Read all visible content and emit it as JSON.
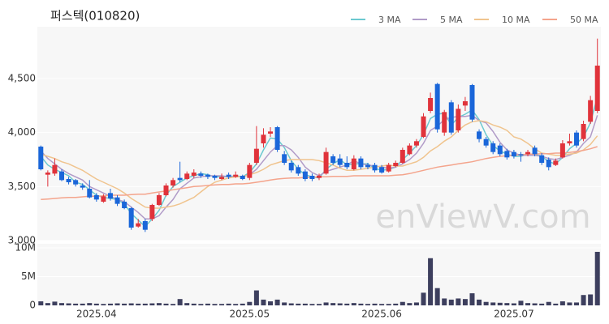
{
  "chart_data": {
    "type": "candlestick",
    "title": "퍼스텍(010820)",
    "watermark": "enViewV.com",
    "categories": [
      null,
      null,
      null,
      null,
      null,
      null,
      null,
      null,
      "2025.04",
      null,
      null,
      null,
      null,
      null,
      null,
      null,
      null,
      null,
      null,
      null,
      null,
      null,
      null,
      null,
      null,
      null,
      null,
      null,
      null,
      null,
      "2025.05",
      null,
      null,
      null,
      null,
      null,
      null,
      null,
      null,
      null,
      null,
      null,
      null,
      null,
      null,
      null,
      null,
      null,
      null,
      "2025.06",
      null,
      null,
      null,
      null,
      null,
      null,
      null,
      null,
      null,
      null,
      null,
      null,
      null,
      null,
      null,
      null,
      null,
      null,
      "2025.07",
      null,
      null,
      null,
      null,
      null,
      null,
      null,
      null,
      null,
      null,
      null,
      null
    ],
    "up_color": "#e0333b",
    "down_color": "#1a66d9",
    "volume_color": "#3d3f5e",
    "candles": [
      {
        "open": 3870,
        "high": 3880,
        "low": 3650,
        "close": 3660
      },
      {
        "open": 3610,
        "high": 3650,
        "low": 3500,
        "close": 3630
      },
      {
        "open": 3620,
        "high": 3760,
        "low": 3600,
        "close": 3700
      },
      {
        "open": 3640,
        "high": 3660,
        "low": 3550,
        "close": 3560
      },
      {
        "open": 3570,
        "high": 3590,
        "low": 3520,
        "close": 3540
      },
      {
        "open": 3560,
        "high": 3570,
        "low": 3500,
        "close": 3520
      },
      {
        "open": 3510,
        "high": 3530,
        "low": 3470,
        "close": 3490
      },
      {
        "open": 3480,
        "high": 3560,
        "low": 3390,
        "close": 3400
      },
      {
        "open": 3420,
        "high": 3440,
        "low": 3360,
        "close": 3380
      },
      {
        "open": 3360,
        "high": 3430,
        "low": 3350,
        "close": 3410
      },
      {
        "open": 3440,
        "high": 3480,
        "low": 3370,
        "close": 3390
      },
      {
        "open": 3400,
        "high": 3420,
        "low": 3320,
        "close": 3340
      },
      {
        "open": 3360,
        "high": 3380,
        "low": 3290,
        "close": 3300
      },
      {
        "open": 3300,
        "high": 3310,
        "low": 3100,
        "close": 3120
      },
      {
        "open": 3130,
        "high": 3200,
        "low": 3120,
        "close": 3160
      },
      {
        "open": 3180,
        "high": 3200,
        "low": 3080,
        "close": 3100
      },
      {
        "open": 3200,
        "high": 3340,
        "low": 3180,
        "close": 3330
      },
      {
        "open": 3330,
        "high": 3440,
        "low": 3320,
        "close": 3420
      },
      {
        "open": 3420,
        "high": 3530,
        "low": 3410,
        "close": 3510
      },
      {
        "open": 3510,
        "high": 3580,
        "low": 3490,
        "close": 3560
      },
      {
        "open": 3580,
        "high": 3730,
        "low": 3540,
        "close": 3560
      },
      {
        "open": 3570,
        "high": 3640,
        "low": 3560,
        "close": 3620
      },
      {
        "open": 3600,
        "high": 3660,
        "low": 3580,
        "close": 3630
      },
      {
        "open": 3620,
        "high": 3640,
        "low": 3580,
        "close": 3600
      },
      {
        "open": 3610,
        "high": 3620,
        "low": 3570,
        "close": 3590
      },
      {
        "open": 3600,
        "high": 3610,
        "low": 3560,
        "close": 3580
      },
      {
        "open": 3570,
        "high": 3620,
        "low": 3560,
        "close": 3590
      },
      {
        "open": 3610,
        "high": 3630,
        "low": 3570,
        "close": 3590
      },
      {
        "open": 3590,
        "high": 3640,
        "low": 3580,
        "close": 3610
      },
      {
        "open": 3600,
        "high": 3610,
        "low": 3560,
        "close": 3570
      },
      {
        "open": 3580,
        "high": 3720,
        "low": 3560,
        "close": 3700
      },
      {
        "open": 3720,
        "high": 4060,
        "low": 3700,
        "close": 3850
      },
      {
        "open": 3900,
        "high": 4040,
        "low": 3860,
        "close": 3980
      },
      {
        "open": 3990,
        "high": 4050,
        "low": 3960,
        "close": 4010
      },
      {
        "open": 4050,
        "high": 4060,
        "low": 3820,
        "close": 3840
      },
      {
        "open": 3800,
        "high": 3830,
        "low": 3700,
        "close": 3720
      },
      {
        "open": 3720,
        "high": 3740,
        "low": 3630,
        "close": 3650
      },
      {
        "open": 3680,
        "high": 3700,
        "low": 3600,
        "close": 3620
      },
      {
        "open": 3640,
        "high": 3660,
        "low": 3550,
        "close": 3570
      },
      {
        "open": 3600,
        "high": 3620,
        "low": 3550,
        "close": 3570
      },
      {
        "open": 3580,
        "high": 3620,
        "low": 3560,
        "close": 3600
      },
      {
        "open": 3620,
        "high": 3860,
        "low": 3610,
        "close": 3820
      },
      {
        "open": 3780,
        "high": 3800,
        "low": 3700,
        "close": 3720
      },
      {
        "open": 3760,
        "high": 3800,
        "low": 3680,
        "close": 3700
      },
      {
        "open": 3720,
        "high": 3780,
        "low": 3660,
        "close": 3680
      },
      {
        "open": 3660,
        "high": 3790,
        "low": 3650,
        "close": 3760
      },
      {
        "open": 3760,
        "high": 3780,
        "low": 3660,
        "close": 3680
      },
      {
        "open": 3700,
        "high": 3720,
        "low": 3660,
        "close": 3680
      },
      {
        "open": 3700,
        "high": 3720,
        "low": 3630,
        "close": 3650
      },
      {
        "open": 3680,
        "high": 3700,
        "low": 3620,
        "close": 3630
      },
      {
        "open": 3640,
        "high": 3720,
        "low": 3630,
        "close": 3700
      },
      {
        "open": 3690,
        "high": 3740,
        "low": 3680,
        "close": 3720
      },
      {
        "open": 3720,
        "high": 3860,
        "low": 3710,
        "close": 3840
      },
      {
        "open": 3800,
        "high": 3900,
        "low": 3790,
        "close": 3880
      },
      {
        "open": 3880,
        "high": 3940,
        "low": 3860,
        "close": 3920
      },
      {
        "open": 3960,
        "high": 4180,
        "low": 3950,
        "close": 4150
      },
      {
        "open": 4200,
        "high": 4370,
        "low": 4180,
        "close": 4320
      },
      {
        "open": 4450,
        "high": 4460,
        "low": 4000,
        "close": 4030
      },
      {
        "open": 4000,
        "high": 4210,
        "low": 3970,
        "close": 4190
      },
      {
        "open": 4280,
        "high": 4300,
        "low": 3980,
        "close": 4000
      },
      {
        "open": 4020,
        "high": 4260,
        "low": 4000,
        "close": 4220
      },
      {
        "open": 4250,
        "high": 4330,
        "low": 4200,
        "close": 4290
      },
      {
        "open": 4440,
        "high": 4450,
        "low": 4100,
        "close": 4120
      },
      {
        "open": 4010,
        "high": 4030,
        "low": 3910,
        "close": 3940
      },
      {
        "open": 3940,
        "high": 3960,
        "low": 3860,
        "close": 3880
      },
      {
        "open": 3900,
        "high": 3920,
        "low": 3800,
        "close": 3820
      },
      {
        "open": 3880,
        "high": 3900,
        "low": 3780,
        "close": 3800
      },
      {
        "open": 3830,
        "high": 3850,
        "low": 3750,
        "close": 3770
      },
      {
        "open": 3820,
        "high": 3840,
        "low": 3760,
        "close": 3780
      },
      {
        "open": 3800,
        "high": 3820,
        "low": 3730,
        "close": 3790
      },
      {
        "open": 3800,
        "high": 3840,
        "low": 3780,
        "close": 3820
      },
      {
        "open": 3860,
        "high": 3880,
        "low": 3780,
        "close": 3800
      },
      {
        "open": 3790,
        "high": 3810,
        "low": 3700,
        "close": 3720
      },
      {
        "open": 3750,
        "high": 3770,
        "low": 3650,
        "close": 3680
      },
      {
        "open": 3700,
        "high": 3760,
        "low": 3690,
        "close": 3740
      },
      {
        "open": 3770,
        "high": 3930,
        "low": 3760,
        "close": 3900
      },
      {
        "open": 3900,
        "high": 3990,
        "low": 3880,
        "close": 3920
      },
      {
        "open": 4000,
        "high": 4020,
        "low": 3860,
        "close": 3880
      },
      {
        "open": 3940,
        "high": 4110,
        "low": 3920,
        "close": 4080
      },
      {
        "open": 4100,
        "high": 4340,
        "low": 4080,
        "close": 4300
      },
      {
        "open": 4200,
        "high": 4870,
        "low": 4180,
        "close": 4620
      }
    ],
    "volume": [
      700000,
      400000,
      650000,
      400000,
      350000,
      300000,
      300000,
      400000,
      300000,
      250000,
      300000,
      350000,
      300000,
      350000,
      300000,
      300000,
      350000,
      400000,
      300000,
      250000,
      1100000,
      400000,
      300000,
      250000,
      300000,
      250000,
      250000,
      300000,
      250000,
      300000,
      600000,
      2600000,
      1000000,
      700000,
      1000000,
      500000,
      350000,
      300000,
      300000,
      250000,
      250000,
      500000,
      400000,
      350000,
      300000,
      400000,
      300000,
      250000,
      300000,
      250000,
      250000,
      300000,
      600000,
      400000,
      500000,
      2200000,
      8200000,
      3000000,
      1200000,
      1000000,
      1200000,
      1100000,
      2100000,
      1000000,
      600000,
      500000,
      450000,
      400000,
      350000,
      800000,
      400000,
      350000,
      300000,
      600000,
      300000,
      700000,
      500000,
      500000,
      1800000,
      1900000,
      9300000
    ],
    "series": [
      {
        "name": "3 MA",
        "color": "#6cc9d0",
        "values": [
          3780,
          3700,
          3660,
          3630,
          3600,
          3540,
          3520,
          3470,
          3420,
          3400,
          3390,
          3380,
          3340,
          3250,
          3190,
          3130,
          3200,
          3280,
          3420,
          3500,
          3540,
          3580,
          3600,
          3620,
          3610,
          3590,
          3590,
          3590,
          3600,
          3590,
          3630,
          3710,
          3840,
          3950,
          3940,
          3860,
          3740,
          3660,
          3610,
          3590,
          3580,
          3660,
          3710,
          3750,
          3700,
          3710,
          3710,
          3710,
          3670,
          3650,
          3660,
          3680,
          3750,
          3810,
          3880,
          3980,
          4130,
          4170,
          4180,
          4070,
          4140,
          4170,
          4210,
          4120,
          3980,
          3880,
          3830,
          3800,
          3780,
          3780,
          3800,
          3800,
          3780,
          3730,
          3710,
          3770,
          3850,
          3900,
          3960,
          4090,
          4330
        ]
      },
      {
        "name": "5 MA",
        "color": "#b19bc8",
        "values": [
          3830,
          3760,
          3710,
          3660,
          3620,
          3590,
          3560,
          3500,
          3470,
          3440,
          3410,
          3380,
          3360,
          3310,
          3260,
          3200,
          3200,
          3230,
          3310,
          3380,
          3480,
          3530,
          3580,
          3590,
          3600,
          3600,
          3600,
          3590,
          3590,
          3590,
          3610,
          3660,
          3740,
          3820,
          3880,
          3880,
          3840,
          3770,
          3680,
          3630,
          3600,
          3640,
          3660,
          3680,
          3700,
          3740,
          3710,
          3700,
          3690,
          3680,
          3670,
          3680,
          3710,
          3750,
          3810,
          3900,
          4020,
          4060,
          4120,
          4140,
          4150,
          4150,
          4160,
          4110,
          4090,
          4010,
          3910,
          3840,
          3810,
          3790,
          3790,
          3790,
          3780,
          3760,
          3750,
          3770,
          3790,
          3820,
          3900,
          3960,
          4160
        ]
      },
      {
        "name": "10 MA",
        "color": "#f0c48e",
        "values": [
          3800,
          3780,
          3760,
          3730,
          3710,
          3680,
          3650,
          3610,
          3570,
          3540,
          3510,
          3480,
          3440,
          3390,
          3350,
          3310,
          3300,
          3300,
          3310,
          3320,
          3340,
          3370,
          3400,
          3450,
          3500,
          3540,
          3560,
          3580,
          3590,
          3590,
          3610,
          3630,
          3660,
          3700,
          3720,
          3740,
          3750,
          3750,
          3750,
          3750,
          3740,
          3720,
          3700,
          3670,
          3650,
          3650,
          3660,
          3670,
          3680,
          3690,
          3700,
          3690,
          3690,
          3710,
          3730,
          3770,
          3830,
          3870,
          3920,
          3960,
          4020,
          4070,
          4100,
          4110,
          4100,
          4070,
          4050,
          4020,
          3960,
          3940,
          3900,
          3850,
          3810,
          3800,
          3790,
          3790,
          3800,
          3810,
          3840,
          3890,
          3970
        ]
      },
      {
        "name": "50 MA",
        "color": "#f4a48c",
        "values": [
          3380,
          3385,
          3390,
          3395,
          3400,
          3400,
          3405,
          3410,
          3410,
          3415,
          3420,
          3420,
          3420,
          3425,
          3430,
          3430,
          3440,
          3450,
          3460,
          3470,
          3480,
          3490,
          3500,
          3505,
          3510,
          3515,
          3520,
          3520,
          3525,
          3525,
          3530,
          3540,
          3550,
          3560,
          3570,
          3575,
          3580,
          3580,
          3585,
          3585,
          3590,
          3590,
          3595,
          3595,
          3595,
          3600,
          3600,
          3600,
          3600,
          3600,
          3600,
          3605,
          3610,
          3620,
          3635,
          3650,
          3665,
          3680,
          3690,
          3700,
          3710,
          3720,
          3730,
          3745,
          3760,
          3770,
          3780,
          3785,
          3790,
          3795,
          3800,
          3800,
          3805,
          3805,
          3810,
          3810,
          3815,
          3825,
          3835,
          3850,
          3870
        ]
      }
    ],
    "ylim": [
      3000,
      4980
    ],
    "yticks": [
      {
        "value": 3000,
        "label": "3,000"
      },
      {
        "value": 3500,
        "label": "3,500"
      },
      {
        "value": 4000,
        "label": "4,000"
      },
      {
        "value": 4500,
        "label": "4,500"
      }
    ],
    "vlim": [
      0,
      10700000
    ],
    "vticks": [
      {
        "value": 0,
        "label": "0"
      },
      {
        "value": 5000000,
        "label": "5M"
      },
      {
        "value": 10000000,
        "label": "10M"
      }
    ],
    "grid": true
  }
}
